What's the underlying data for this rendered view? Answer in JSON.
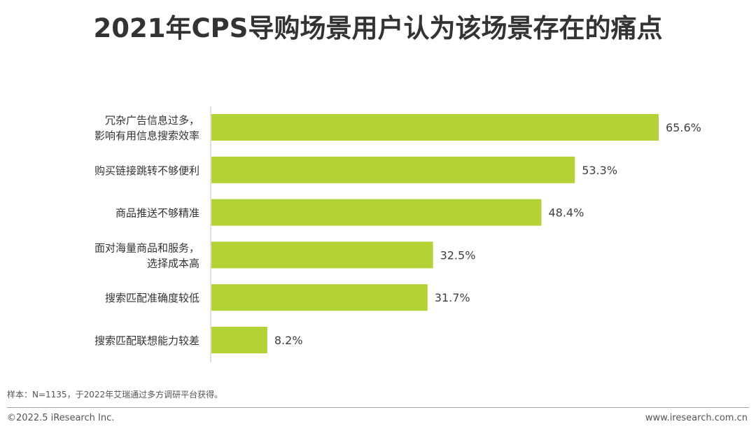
{
  "title": "2021年CPS导购场景用户认为该场景存在的痛点",
  "chart_data": {
    "type": "bar",
    "orientation": "horizontal",
    "categories": [
      [
        "冗杂广告信息过多，",
        "影响有用信息搜索效率"
      ],
      [
        "购买链接跳转不够便利"
      ],
      [
        "商品推送不够精准"
      ],
      [
        "面对海量商品和服务，",
        "选择成本高"
      ],
      [
        "搜索匹配准确度较低"
      ],
      [
        "搜索匹配联想能力较差"
      ]
    ],
    "values": [
      65.6,
      53.3,
      48.4,
      32.5,
      31.7,
      8.2
    ],
    "value_labels": [
      "65.6%",
      "53.3%",
      "48.4%",
      "32.5%",
      "31.7%",
      "8.2%"
    ],
    "xlim": [
      0,
      66
    ],
    "bar_color": "#b2d235",
    "grid": false,
    "legend": "none"
  },
  "footer": {
    "note": "样本：N=1135，于2022年艾瑞通过多方调研平台获得。",
    "copyright": "©2022.5 iResearch Inc.",
    "website": "www.iresearch.com.cn"
  }
}
